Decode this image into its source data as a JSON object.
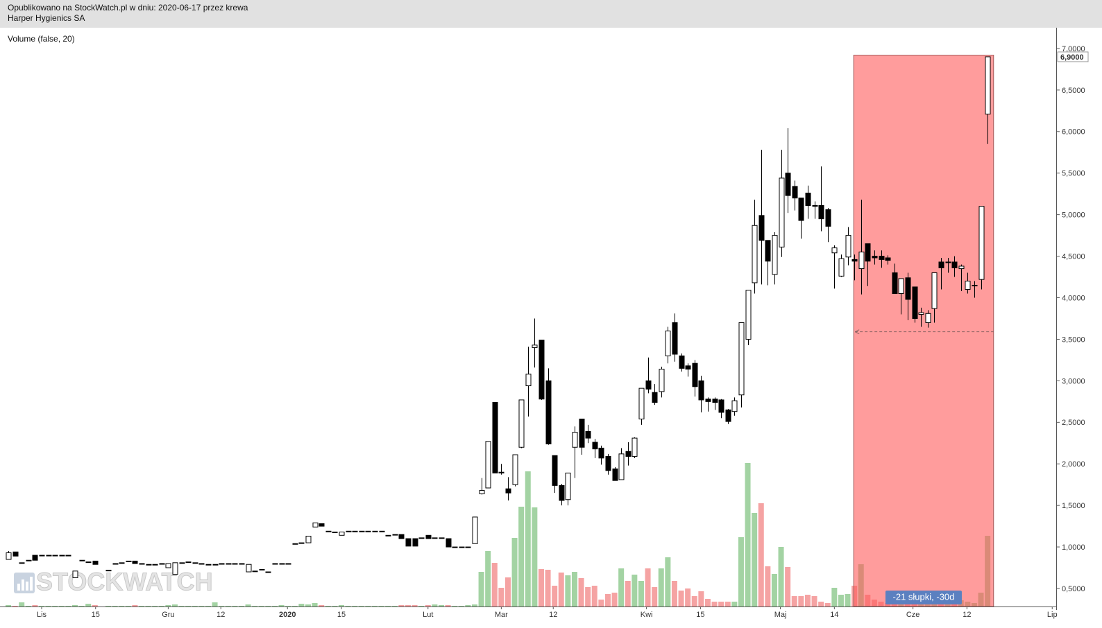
{
  "chart_data": {
    "type": "candlestick",
    "header": [
      "Opublikowano na StockWatch.pl w dniu: 2020-06-17 przez krewa",
      "Harper Hygienics SA"
    ],
    "indicator_label": "Volume (false, 20)",
    "watermark": "STOCKWATCH",
    "up_color": "#ffffff",
    "down_color": "#000000",
    "outline_color": "#000000",
    "volume_up_color": "#a3d3a3",
    "volume_down_color": "#f5a3a3",
    "xlim": [
      -0.25,
      158.3
    ],
    "ylim": [
      0.283,
      7.25
    ],
    "vlim": [
      0,
      235
    ],
    "xticks": [
      {
        "value": 6.0,
        "label": "Lis"
      },
      {
        "value": 14.1,
        "label": "15"
      },
      {
        "value": 25.0,
        "label": "Gru"
      },
      {
        "value": 32.9,
        "label": "12"
      },
      {
        "value": 42.9,
        "label": "2020"
      },
      {
        "value": 51.0,
        "label": "15"
      },
      {
        "value": 64.0,
        "label": "Lut"
      },
      {
        "value": 75.0,
        "label": "Mar"
      },
      {
        "value": 82.8,
        "label": "12"
      },
      {
        "value": 96.8,
        "label": "Kwi"
      },
      {
        "value": 104.9,
        "label": "15"
      },
      {
        "value": 116.9,
        "label": "Maj"
      },
      {
        "value": 125.0,
        "label": "14"
      },
      {
        "value": 136.8,
        "label": "Cze"
      },
      {
        "value": 144.9,
        "label": "12"
      },
      {
        "value": 157.7,
        "label": "Lip"
      }
    ],
    "yticks": [
      {
        "value": 0.5,
        "label": "0,5000"
      },
      {
        "value": 1.0,
        "label": "1,0000"
      },
      {
        "value": 1.5,
        "label": "1,5000"
      },
      {
        "value": 2.0,
        "label": "2,0000"
      },
      {
        "value": 2.5,
        "label": "2,5000"
      },
      {
        "value": 3.0,
        "label": "3,0000"
      },
      {
        "value": 3.5,
        "label": "3,5000"
      },
      {
        "value": 4.0,
        "label": "4,0000"
      },
      {
        "value": 4.5,
        "label": "4,5000"
      },
      {
        "value": 5.0,
        "label": "5,0000"
      },
      {
        "value": 5.5,
        "label": "5,5000"
      },
      {
        "value": 6.0,
        "label": "6,0000"
      },
      {
        "value": 6.5,
        "label": "6,5000"
      },
      {
        "value": 7.0,
        "label": "7,0000"
      }
    ],
    "last_price": {
      "value": 6.9,
      "label": "6,9000"
    },
    "highlight": {
      "x": [
        127.9,
        148.9
      ],
      "y_top": 6.92,
      "level": 3.59,
      "label": "-21 słupki, -30d",
      "color": "#ff5a5a",
      "badge_color": "#5b80c0"
    },
    "x": [
      1,
      2,
      3,
      4,
      5,
      6,
      7,
      8,
      9,
      10,
      11,
      12,
      13,
      14,
      16,
      17,
      18,
      19,
      20,
      21,
      22,
      23,
      24,
      25,
      26,
      27,
      28,
      29,
      30,
      31,
      32,
      33,
      34,
      35,
      36,
      37,
      38,
      39,
      40,
      41,
      42,
      43,
      44,
      45,
      46,
      47,
      48,
      49,
      50,
      51,
      52,
      53,
      54,
      55,
      56,
      57,
      58,
      59,
      60,
      61,
      62,
      63,
      64,
      65,
      66,
      67,
      68,
      69,
      70,
      71,
      72,
      73,
      74,
      75,
      76,
      77,
      78,
      79,
      80,
      81,
      82,
      83,
      84,
      85,
      86,
      87,
      88,
      89,
      90,
      91,
      92,
      93,
      94,
      95,
      96,
      97,
      98,
      99,
      100,
      101,
      102,
      103,
      104,
      105,
      106,
      107,
      108,
      109,
      110,
      111,
      112,
      113,
      114,
      115,
      116,
      117,
      118,
      119,
      120,
      121,
      122,
      123,
      124,
      125,
      126,
      127,
      128,
      129,
      130,
      131,
      132,
      133,
      134,
      135,
      136,
      137,
      138,
      139,
      140,
      141,
      142,
      143,
      144,
      145,
      146,
      147,
      148
    ],
    "open": [
      0.85,
      0.94,
      0.81,
      0.84,
      0.9,
      0.9,
      0.9,
      0.9,
      0.9,
      0.9,
      0.63,
      0.84,
      0.82,
      0.83,
      0.72,
      0.8,
      0.81,
      0.83,
      0.83,
      0.8,
      0.79,
      0.79,
      0.8,
      0.75,
      0.67,
      0.81,
      0.82,
      0.81,
      0.8,
      0.79,
      0.79,
      0.8,
      0.8,
      0.8,
      0.8,
      0.7,
      0.71,
      0.73,
      0.7,
      0.8,
      0.8,
      0.8,
      1.04,
      1.05,
      1.05,
      1.24,
      1.28,
      1.19,
      1.18,
      1.14,
      1.19,
      1.19,
      1.19,
      1.19,
      1.19,
      1.19,
      1.14,
      1.15,
      1.15,
      1.1,
      1.1,
      1.11,
      1.14,
      1.11,
      1.11,
      1.1,
      1.0,
      1.0,
      1.0,
      1.04,
      1.64,
      1.71,
      2.74,
      1.9,
      1.7,
      1.75,
      2.2,
      2.94,
      3.4,
      3.49,
      3.0,
      2.1,
      1.74,
      1.57,
      2.2,
      2.54,
      2.39,
      2.26,
      2.19,
      2.09,
      1.94,
      1.81,
      2.15,
      2.09,
      2.54,
      3.0,
      2.86,
      2.87,
      3.3,
      3.7,
      3.3,
      3.18,
      3.21,
      3.0,
      2.78,
      2.78,
      2.77,
      2.65,
      2.63,
      2.83,
      3.5,
      4.18,
      4.99,
      4.69,
      4.28,
      4.61,
      5.5,
      5.34,
      5.2,
      5.26,
      5.11,
      5.11,
      5.06,
      4.54,
      4.26,
      4.49,
      4.46,
      4.35,
      4.65,
      4.5,
      4.5,
      4.48,
      4.3,
      4.05,
      4.24,
      4.13,
      3.8,
      3.7,
      3.87,
      4.43,
      4.43,
      4.43,
      4.35,
      4.1,
      4.15,
      4.22,
      6.21
    ],
    "high": [
      0.95,
      0.94,
      0.81,
      0.84,
      0.9,
      0.9,
      0.9,
      0.9,
      0.9,
      0.9,
      0.71,
      0.84,
      0.82,
      0.83,
      0.72,
      0.8,
      0.81,
      0.83,
      0.83,
      0.8,
      0.79,
      0.79,
      0.8,
      0.8,
      0.81,
      0.81,
      0.82,
      0.81,
      0.8,
      0.79,
      0.79,
      0.8,
      0.8,
      0.8,
      0.8,
      0.79,
      0.71,
      0.73,
      0.7,
      0.8,
      0.8,
      0.8,
      1.04,
      1.05,
      1.13,
      1.29,
      1.28,
      1.19,
      1.18,
      1.18,
      1.19,
      1.19,
      1.19,
      1.19,
      1.19,
      1.19,
      1.14,
      1.15,
      1.15,
      1.1,
      1.1,
      1.11,
      1.14,
      1.11,
      1.11,
      1.1,
      1.0,
      1.0,
      1.0,
      1.36,
      1.83,
      2.27,
      2.74,
      2.0,
      1.84,
      2.11,
      2.77,
      3.41,
      3.75,
      3.49,
      3.15,
      2.1,
      1.76,
      1.89,
      2.45,
      2.54,
      2.47,
      2.3,
      2.22,
      2.12,
      1.96,
      2.19,
      2.26,
      2.32,
      2.91,
      3.28,
      2.96,
      3.17,
      3.65,
      3.81,
      3.33,
      3.21,
      3.25,
      3.06,
      2.8,
      2.8,
      2.78,
      2.66,
      2.8,
      3.7,
      4.09,
      5.18,
      5.78,
      4.69,
      4.79,
      5.78,
      6.04,
      5.41,
      5.2,
      5.35,
      5.16,
      5.58,
      5.08,
      4.63,
      4.52,
      4.85,
      4.52,
      5.18,
      4.65,
      4.57,
      4.57,
      4.51,
      4.41,
      4.23,
      4.3,
      4.13,
      3.88,
      3.85,
      4.3,
      4.48,
      4.48,
      4.5,
      4.4,
      4.3,
      4.2,
      5.1,
      6.9
    ],
    "low": [
      0.85,
      0.89,
      0.81,
      0.84,
      0.84,
      0.9,
      0.9,
      0.9,
      0.9,
      0.9,
      0.63,
      0.84,
      0.82,
      0.79,
      0.72,
      0.8,
      0.81,
      0.83,
      0.8,
      0.8,
      0.79,
      0.79,
      0.8,
      0.75,
      0.67,
      0.81,
      0.82,
      0.81,
      0.8,
      0.79,
      0.79,
      0.8,
      0.8,
      0.8,
      0.8,
      0.7,
      0.71,
      0.73,
      0.7,
      0.8,
      0.8,
      0.8,
      1.04,
      1.05,
      1.05,
      1.24,
      1.25,
      1.19,
      1.18,
      1.14,
      1.19,
      1.19,
      1.19,
      1.19,
      1.19,
      1.19,
      1.14,
      1.15,
      1.1,
      1.01,
      1.01,
      1.11,
      1.1,
      1.11,
      1.11,
      1.0,
      1.0,
      1.0,
      1.0,
      1.04,
      1.63,
      1.71,
      1.89,
      1.87,
      1.56,
      1.73,
      2.19,
      2.57,
      3.16,
      2.77,
      2.23,
      1.65,
      1.5,
      1.5,
      1.83,
      2.11,
      2.25,
      2.07,
      1.99,
      1.87,
      1.8,
      1.81,
      1.98,
      2.07,
      2.47,
      2.85,
      2.71,
      2.8,
      3.21,
      3.23,
      3.11,
      3.05,
      2.81,
      2.62,
      2.63,
      2.65,
      2.55,
      2.48,
      2.58,
      2.68,
      3.43,
      4.05,
      4.16,
      4.15,
      4.16,
      4.49,
      5.02,
      5.05,
      4.71,
      4.95,
      4.95,
      4.8,
      4.67,
      4.11,
      4.25,
      4.39,
      4.21,
      4.04,
      4.14,
      4.4,
      4.36,
      4.4,
      4.05,
      3.8,
      3.73,
      3.7,
      3.65,
      3.64,
      3.7,
      4.1,
      4.3,
      4.25,
      4.08,
      4.05,
      4.0,
      4.1,
      5.85
    ],
    "close": [
      0.93,
      0.89,
      0.81,
      0.84,
      0.84,
      0.9,
      0.9,
      0.9,
      0.9,
      0.9,
      0.71,
      0.84,
      0.82,
      0.79,
      0.72,
      0.8,
      0.81,
      0.83,
      0.8,
      0.8,
      0.79,
      0.79,
      0.8,
      0.8,
      0.81,
      0.81,
      0.82,
      0.81,
      0.8,
      0.79,
      0.79,
      0.8,
      0.8,
      0.8,
      0.8,
      0.79,
      0.71,
      0.73,
      0.7,
      0.8,
      0.8,
      0.8,
      1.04,
      1.05,
      1.13,
      1.29,
      1.25,
      1.19,
      1.18,
      1.18,
      1.19,
      1.19,
      1.19,
      1.19,
      1.19,
      1.19,
      1.14,
      1.15,
      1.1,
      1.01,
      1.01,
      1.11,
      1.1,
      1.11,
      1.11,
      1.0,
      1.0,
      1.0,
      1.0,
      1.36,
      1.68,
      2.27,
      1.89,
      1.89,
      1.65,
      2.11,
      2.77,
      3.08,
      3.43,
      2.78,
      2.24,
      1.74,
      1.56,
      1.89,
      2.38,
      2.2,
      2.31,
      2.18,
      2.07,
      1.92,
      1.8,
      2.12,
      2.09,
      2.31,
      2.91,
      2.9,
      2.74,
      3.14,
      3.6,
      3.32,
      3.15,
      3.14,
      2.93,
      2.77,
      2.75,
      2.74,
      2.62,
      2.51,
      2.76,
      3.7,
      4.09,
      4.87,
      4.69,
      4.44,
      4.75,
      5.44,
      5.23,
      5.2,
      4.93,
      5.11,
      5.1,
      4.95,
      4.86,
      4.6,
      4.47,
      4.75,
      4.44,
      4.55,
      4.44,
      4.48,
      4.46,
      4.45,
      4.05,
      4.23,
      3.98,
      3.75,
      3.82,
      3.81,
      4.3,
      4.36,
      4.43,
      4.36,
      4.38,
      4.2,
      4.15,
      5.1,
      6.9
    ],
    "volume": [
      2,
      1,
      6,
      1,
      2,
      1,
      1,
      1,
      1,
      1,
      2,
      1,
      4,
      2,
      1,
      1,
      1,
      1,
      2,
      1,
      1,
      1,
      1,
      2,
      3,
      1,
      1,
      1,
      1,
      1,
      6,
      1,
      1,
      1,
      1,
      3,
      1,
      1,
      1,
      1,
      2,
      1,
      1,
      4,
      3,
      5,
      2,
      1,
      1,
      2,
      1,
      1,
      1,
      1,
      1,
      1,
      1,
      1,
      2,
      2,
      2,
      1,
      2,
      3,
      2,
      2,
      1,
      1,
      2,
      3,
      50,
      80,
      63,
      27,
      42,
      99,
      144,
      195,
      143,
      54,
      53,
      30,
      49,
      45,
      50,
      41,
      28,
      30,
      10,
      18,
      20,
      55,
      37,
      46,
      37,
      55,
      28,
      55,
      71,
      37,
      23,
      26,
      15,
      22,
      11,
      7,
      7,
      7,
      7,
      100,
      207,
      135,
      149,
      58,
      47,
      86,
      57,
      15,
      15,
      17,
      15,
      7,
      5,
      27,
      17,
      18,
      30,
      61,
      17,
      10,
      7,
      5,
      5,
      5,
      5,
      5,
      5,
      5,
      10,
      8,
      5,
      7,
      9,
      7,
      5,
      20,
      102
    ]
  }
}
